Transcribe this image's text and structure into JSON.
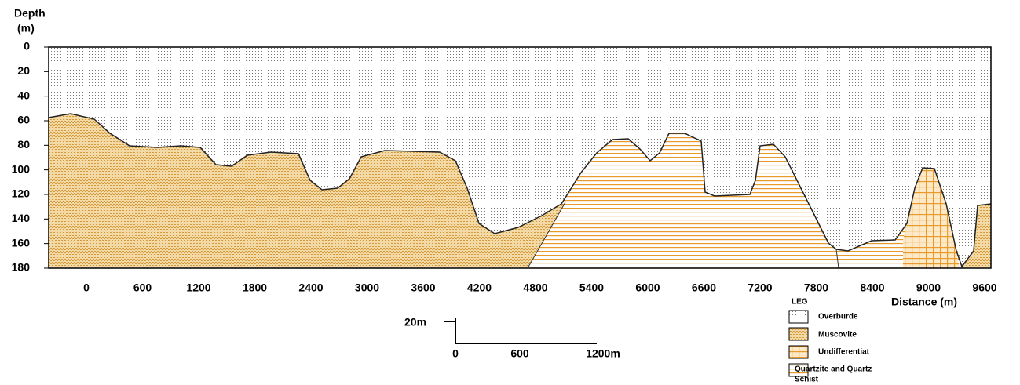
{
  "axis": {
    "y_title_line1": "Depth",
    "y_title_line2": "(m)",
    "x_title": "Distance (m)",
    "y_ticks": [
      "0",
      "20",
      "40",
      "60",
      "80",
      "100",
      "120",
      "140",
      "160",
      "180"
    ],
    "x_ticks": [
      "0",
      "600",
      "1200",
      "1800",
      "2400",
      "3000",
      "3600",
      "4200",
      "4800",
      "5400",
      "6000",
      "6600",
      "7200",
      "7800",
      "8400",
      "9000",
      "9600"
    ]
  },
  "scale_bar": {
    "vertical": "20m",
    "labels": [
      "0",
      "600",
      "1200m"
    ]
  },
  "legend": {
    "title": "LEG",
    "items": [
      "Overburde",
      "Muscovite",
      "Undifferentiat",
      "Quartzite and   Quartz",
      "Schist"
    ]
  }
}
